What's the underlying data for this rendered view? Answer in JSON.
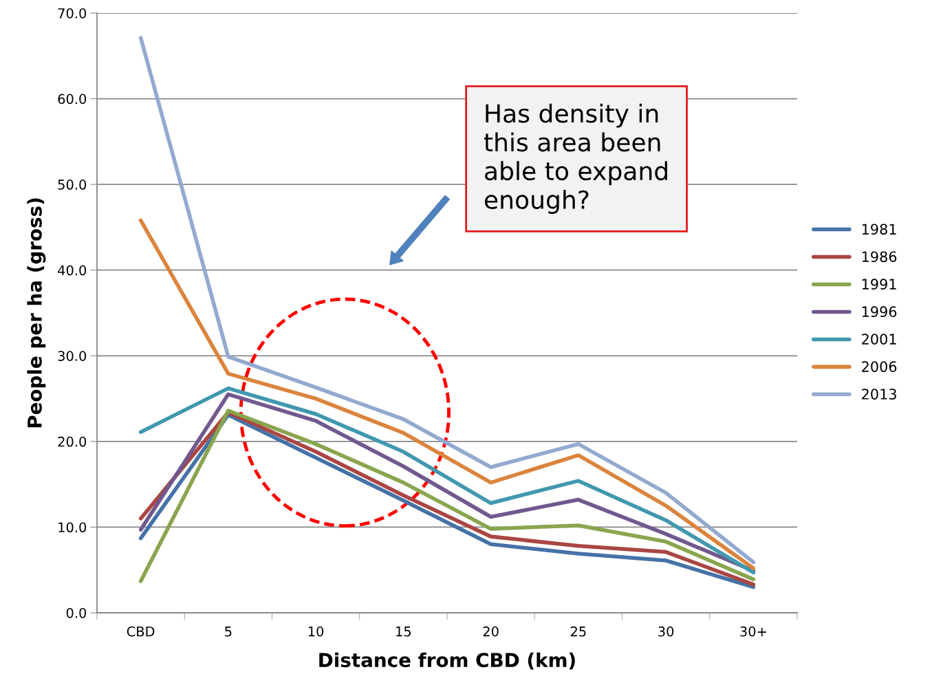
{
  "chart_data": {
    "type": "line",
    "xlabel": "Distance from CBD (km)",
    "ylabel": "People per ha (gross)",
    "categories": [
      "CBD",
      "5",
      "10",
      "15",
      "20",
      "25",
      "30",
      "30+"
    ],
    "ylim": [
      0,
      70
    ],
    "yticks": [
      {
        "value": 0,
        "label": "0.0"
      },
      {
        "value": 10,
        "label": "10.0"
      },
      {
        "value": 20,
        "label": "20.0"
      },
      {
        "value": 30,
        "label": "30.0"
      },
      {
        "value": 40,
        "label": "40.0"
      },
      {
        "value": 50,
        "label": "50.0"
      },
      {
        "value": 60,
        "label": "60.0"
      },
      {
        "value": 70,
        "label": "70.0"
      }
    ],
    "grid": "y",
    "legend": "right",
    "marker": "none",
    "line_style": "solid",
    "annotations": [
      "Has density in\nthis area been\nable to expand\nenough?"
    ],
    "series": [
      {
        "name": "1981",
        "color": "#4572a7",
        "values": [
          8.7,
          23.1,
          18.1,
          13.1,
          8.0,
          6.9,
          6.1,
          3.0
        ]
      },
      {
        "name": "1986",
        "color": "#aa4643",
        "values": [
          11.0,
          23.4,
          18.8,
          13.7,
          8.9,
          7.8,
          7.1,
          3.3
        ]
      },
      {
        "name": "1991",
        "color": "#89a54e",
        "values": [
          3.7,
          23.6,
          19.7,
          15.2,
          9.8,
          10.2,
          8.3,
          3.9
        ]
      },
      {
        "name": "1996",
        "color": "#71588f",
        "values": [
          9.7,
          25.5,
          22.4,
          17.1,
          11.2,
          13.2,
          9.2,
          4.9
        ]
      },
      {
        "name": "2001",
        "color": "#4198af",
        "values": [
          21.1,
          26.2,
          23.2,
          18.8,
          12.8,
          15.4,
          10.8,
          4.7
        ]
      },
      {
        "name": "2006",
        "color": "#db843d",
        "values": [
          45.8,
          27.9,
          25.0,
          21.0,
          15.2,
          18.4,
          12.5,
          5.2
        ]
      },
      {
        "name": "2013",
        "color": "#93a9cf",
        "values": [
          67.1,
          29.9,
          26.3,
          22.6,
          17.0,
          19.7,
          14.0,
          5.9
        ]
      }
    ]
  }
}
